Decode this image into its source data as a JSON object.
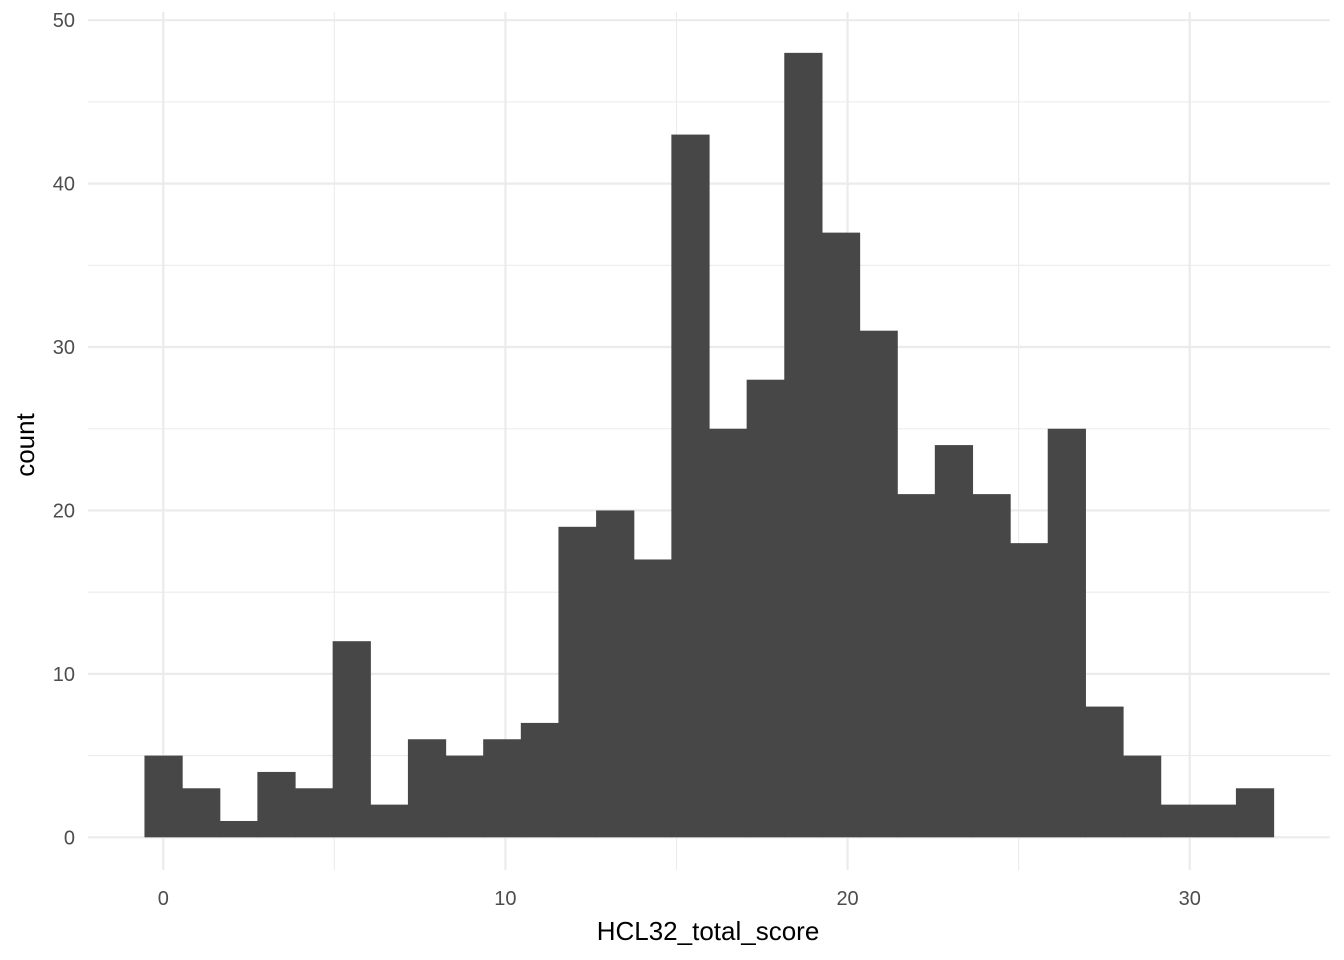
{
  "chart_data": {
    "type": "bar",
    "title": "",
    "xlabel": "HCL32_total_score",
    "ylabel": "count",
    "bin_width": 1.1,
    "bins": [
      {
        "x_start": -0.55,
        "x_end": 0.55,
        "count": 5
      },
      {
        "x_start": 0.55,
        "x_end": 1.65,
        "count": 3
      },
      {
        "x_start": 1.65,
        "x_end": 2.75,
        "count": 1
      },
      {
        "x_start": 2.75,
        "x_end": 3.85,
        "count": 4
      },
      {
        "x_start": 3.85,
        "x_end": 4.95,
        "count": 3
      },
      {
        "x_start": 4.95,
        "x_end": 6.05,
        "count": 12
      },
      {
        "x_start": 6.05,
        "x_end": 7.15,
        "count": 2
      },
      {
        "x_start": 7.15,
        "x_end": 8.25,
        "count": 6
      },
      {
        "x_start": 8.25,
        "x_end": 9.35,
        "count": 5
      },
      {
        "x_start": 9.35,
        "x_end": 10.45,
        "count": 6
      },
      {
        "x_start": 10.45,
        "x_end": 11.55,
        "count": 7
      },
      {
        "x_start": 11.55,
        "x_end": 12.65,
        "count": 19
      },
      {
        "x_start": 12.65,
        "x_end": 13.75,
        "count": 20
      },
      {
        "x_start": 13.75,
        "x_end": 14.85,
        "count": 17
      },
      {
        "x_start": 14.85,
        "x_end": 15.95,
        "count": 43
      },
      {
        "x_start": 15.95,
        "x_end": 17.05,
        "count": 25
      },
      {
        "x_start": 17.05,
        "x_end": 18.15,
        "count": 28
      },
      {
        "x_start": 18.15,
        "x_end": 19.25,
        "count": 48
      },
      {
        "x_start": 19.25,
        "x_end": 20.35,
        "count": 37
      },
      {
        "x_start": 20.35,
        "x_end": 21.45,
        "count": 31
      },
      {
        "x_start": 21.45,
        "x_end": 22.55,
        "count": 21
      },
      {
        "x_start": 22.55,
        "x_end": 23.65,
        "count": 24
      },
      {
        "x_start": 23.65,
        "x_end": 24.75,
        "count": 21
      },
      {
        "x_start": 24.75,
        "x_end": 25.85,
        "count": 18
      },
      {
        "x_start": 25.85,
        "x_end": 26.95,
        "count": 25
      },
      {
        "x_start": 26.95,
        "x_end": 28.05,
        "count": 8
      },
      {
        "x_start": 28.05,
        "x_end": 29.15,
        "count": 5
      },
      {
        "x_start": 29.15,
        "x_end": 30.25,
        "count": 2
      },
      {
        "x_start": 30.25,
        "x_end": 31.35,
        "count": 2
      },
      {
        "x_start": 31.35,
        "x_end": 32.45,
        "count": 3
      }
    ],
    "x_ticks": [
      0,
      10,
      20,
      30
    ],
    "x_tick_labels": [
      "0",
      "10",
      "20",
      "30"
    ],
    "y_ticks": [
      0,
      10,
      20,
      30,
      40,
      50
    ],
    "y_tick_labels": [
      "0",
      "10",
      "20",
      "30",
      "40",
      "50"
    ],
    "xlim": [
      -2.2,
      34.1
    ],
    "ylim": [
      -2,
      50.5
    ],
    "grid": true,
    "legend": "none",
    "bar_color": "#474747",
    "grid_color": "#ebebeb",
    "background": "#ffffff"
  }
}
